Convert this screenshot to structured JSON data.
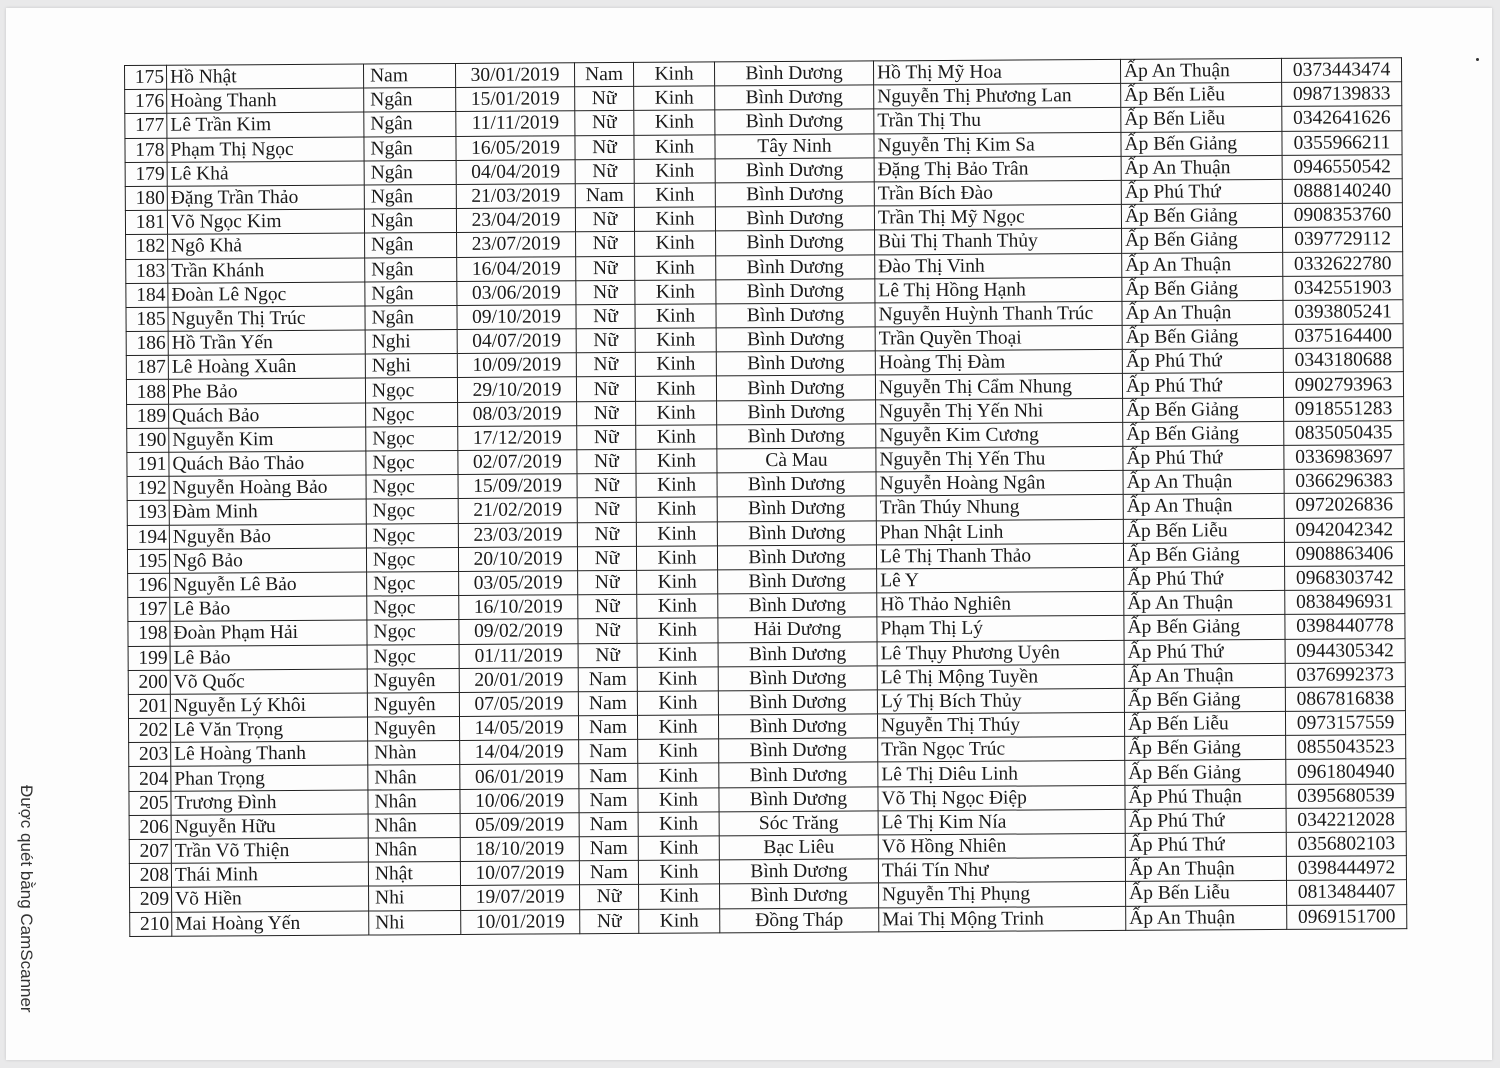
{
  "watermark": "Được quét bằng CamScanner",
  "rows": [
    [
      "175",
      "Hồ Nhật",
      "Nam",
      "30/01/2019",
      "Nam",
      "Kinh",
      "Bình Dương",
      "Hồ Thị Mỹ Hoa",
      "Ấp An Thuận",
      "0373443474"
    ],
    [
      "176",
      "Hoàng Thanh",
      "Ngân",
      "15/01/2019",
      "Nữ",
      "Kinh",
      "Bình Dương",
      "Nguyễn Thị Phương Lan",
      "Ấp Bến Liễu",
      "0987139833"
    ],
    [
      "177",
      "Lê Trần Kim",
      "Ngân",
      "11/11/2019",
      "Nữ",
      "Kinh",
      "Bình Dương",
      "Trần Thị Thu",
      "Ấp Bến Liễu",
      "0342641626"
    ],
    [
      "178",
      "Phạm Thị Ngọc",
      "Ngân",
      "16/05/2019",
      "Nữ",
      "Kinh",
      "Tây Ninh",
      "Nguyễn Thị Kim Sa",
      "Ấp Bến Giảng",
      "0355966211"
    ],
    [
      "179",
      "Lê Khả",
      "Ngân",
      "04/04/2019",
      "Nữ",
      "Kinh",
      "Bình Dương",
      "Đặng Thị Bảo Trân",
      "Ấp An Thuận",
      "0946550542"
    ],
    [
      "180",
      "Đặng Trần Thảo",
      "Ngân",
      "21/03/2019",
      "Nam",
      "Kinh",
      "Bình Dương",
      "Trần Bích Đào",
      "Ấp Phú Thứ",
      "0888140240"
    ],
    [
      "181",
      "Võ Ngọc Kim",
      "Ngân",
      "23/04/2019",
      "Nữ",
      "Kinh",
      "Bình Dương",
      "Trần Thị Mỹ Ngọc",
      "Ấp Bến Giảng",
      "0908353760"
    ],
    [
      "182",
      "Ngô Khả",
      "Ngân",
      "23/07/2019",
      "Nữ",
      "Kinh",
      "Bình Dương",
      "Bùi Thị Thanh Thủy",
      "Ấp Bến Giảng",
      "0397729112"
    ],
    [
      "183",
      "Trần Khánh",
      "Ngân",
      "16/04/2019",
      "Nữ",
      "Kinh",
      "Bình Dương",
      "Đào Thị Vinh",
      "Ấp An Thuận",
      "0332622780"
    ],
    [
      "184",
      "Đoàn Lê Ngọc",
      "Ngân",
      "03/06/2019",
      "Nữ",
      "Kinh",
      "Bình Dương",
      "Lê Thị Hồng Hạnh",
      "Ấp Bến Giảng",
      "0342551903"
    ],
    [
      "185",
      "Nguyễn Thị Trúc",
      "Ngân",
      "09/10/2019",
      "Nữ",
      "Kinh",
      "Bình Dương",
      "Nguyễn Huỳnh Thanh Trúc",
      "Ấp An Thuận",
      "0393805241"
    ],
    [
      "186",
      "Hồ Trần Yến",
      "Nghi",
      "04/07/2019",
      "Nữ",
      "Kinh",
      "Bình Dương",
      "Trần Quyền Thoại",
      "Ấp Bến Giảng",
      "0375164400"
    ],
    [
      "187",
      "Lê Hoàng Xuân",
      "Nghi",
      "10/09/2019",
      "Nữ",
      "Kinh",
      "Bình Dương",
      "Hoàng Thị Đàm",
      "Ấp Phú Thứ",
      "0343180688"
    ],
    [
      "188",
      "Phe Bảo",
      "Ngọc",
      "29/10/2019",
      "Nữ",
      "Kinh",
      "Bình Dương",
      "Nguyễn Thị Cẩm Nhung",
      "Ấp Phú Thứ",
      "0902793963"
    ],
    [
      "189",
      "Quách Bảo",
      "Ngọc",
      "08/03/2019",
      "Nữ",
      "Kinh",
      "Bình Dương",
      "Nguyễn Thị Yến Nhi",
      "Ấp Bến Giảng",
      "0918551283"
    ],
    [
      "190",
      "Nguyễn Kim",
      "Ngọc",
      "17/12/2019",
      "Nữ",
      "Kinh",
      "Bình Dương",
      "Nguyễn Kim Cương",
      "Ấp Bến Giảng",
      "0835050435"
    ],
    [
      "191",
      "Quách Bảo Thảo",
      "Ngọc",
      "02/07/2019",
      "Nữ",
      "Kinh",
      "Cà Mau",
      "Nguyễn Thị Yến Thu",
      "Ấp Phú Thứ",
      "0336983697"
    ],
    [
      "192",
      "Nguyễn Hoàng Bảo",
      "Ngọc",
      "15/09/2019",
      "Nữ",
      "Kinh",
      "Bình Dương",
      "Nguyễn Hoàng Ngân",
      "Ấp An Thuận",
      "0366296383"
    ],
    [
      "193",
      "Đàm Minh",
      "Ngọc",
      "21/02/2019",
      "Nữ",
      "Kinh",
      "Bình Dương",
      "Trần Thúy Nhung",
      "Ấp An Thuận",
      "0972026836"
    ],
    [
      "194",
      "Nguyễn Bảo",
      "Ngọc",
      "23/03/2019",
      "Nữ",
      "Kinh",
      "Bình Dương",
      "Phan Nhật Linh",
      "Ấp Bến Liễu",
      "0942042342"
    ],
    [
      "195",
      "Ngô Bảo",
      "Ngọc",
      "20/10/2019",
      "Nữ",
      "Kinh",
      "Bình Dương",
      "Lê Thị Thanh Thảo",
      "Ấp Bến Giảng",
      "0908863406"
    ],
    [
      "196",
      "Nguyễn Lê Bảo",
      "Ngọc",
      "03/05/2019",
      "Nữ",
      "Kinh",
      "Bình Dương",
      "Lê Y",
      "Ấp Phú Thứ",
      "0968303742"
    ],
    [
      "197",
      "Lê Bảo",
      "Ngọc",
      "16/10/2019",
      "Nữ",
      "Kinh",
      "Bình Dương",
      "Hồ Thảo Nghiên",
      "Ấp An Thuận",
      "0838496931"
    ],
    [
      "198",
      "Đoàn Phạm Hải",
      "Ngọc",
      "09/02/2019",
      "Nữ",
      "Kinh",
      "Hải Dương",
      "Phạm Thị Lý",
      "Ấp Bến Giảng",
      "0398440778"
    ],
    [
      "199",
      "Lê Bảo",
      "Ngọc",
      "01/11/2019",
      "Nữ",
      "Kinh",
      "Bình Dương",
      "Lê Thụy Phương Uyên",
      "Ấp Phú Thứ",
      "0944305342"
    ],
    [
      "200",
      "Võ Quốc",
      "Nguyên",
      "20/01/2019",
      "Nam",
      "Kinh",
      "Bình Dương",
      "Lê Thị Mộng Tuyền",
      "Ấp An Thuận",
      "0376992373"
    ],
    [
      "201",
      "Nguyễn Lý Khôi",
      "Nguyên",
      "07/05/2019",
      "Nam",
      "Kinh",
      "Bình Dương",
      "Lý Thị Bích Thủy",
      "Ấp Bến Giảng",
      "0867816838"
    ],
    [
      "202",
      "Lê Văn Trọng",
      "Nguyên",
      "14/05/2019",
      "Nam",
      "Kinh",
      "Bình Dương",
      "Nguyễn Thị Thúy",
      "Ấp Bến Liễu",
      "0973157559"
    ],
    [
      "203",
      "Lê Hoàng Thanh",
      "Nhàn",
      "14/04/2019",
      "Nam",
      "Kinh",
      "Bình Dương",
      "Trần Ngọc Trúc",
      "Ấp Bến Giảng",
      "0855043523"
    ],
    [
      "204",
      "Phan Trọng",
      "Nhân",
      "06/01/2019",
      "Nam",
      "Kinh",
      "Bình Dương",
      "Lê Thị Diêu Linh",
      "Ấp Bến Giảng",
      "0961804940"
    ],
    [
      "205",
      "Trương Đình",
      "Nhân",
      "10/06/2019",
      "Nam",
      "Kinh",
      "Bình Dương",
      "Võ Thị Ngọc Điệp",
      "Ấp Phú Thuận",
      "0395680539"
    ],
    [
      "206",
      "Nguyễn Hữu",
      "Nhân",
      "05/09/2019",
      "Nam",
      "Kinh",
      "Sóc Trăng",
      "Lê Thị Kim Nía",
      "Ấp Phú Thứ",
      "0342212028"
    ],
    [
      "207",
      "Trần Võ Thiện",
      "Nhân",
      "18/10/2019",
      "Nam",
      "Kinh",
      "Bạc Liêu",
      "Võ Hồng Nhiên",
      "Ấp Phú Thứ",
      "0356802103"
    ],
    [
      "208",
      "Thái Minh",
      "Nhật",
      "10/07/2019",
      "Nam",
      "Kinh",
      "Bình Dương",
      "Thái Tín Như",
      "Ấp An Thuận",
      "0398444972"
    ],
    [
      "209",
      "Võ Hiền",
      "Nhi",
      "19/07/2019",
      "Nữ",
      "Kinh",
      "Bình Dương",
      "Nguyễn Thị Phụng",
      "Ấp Bến Liễu",
      "0813484407"
    ],
    [
      "210",
      "Mai Hoàng Yến",
      "Nhi",
      "10/01/2019",
      "Nữ",
      "Kinh",
      "Đồng Tháp",
      "Mai Thị Mộng Trinh",
      "Ấp An Thuận",
      "0969151700"
    ]
  ]
}
